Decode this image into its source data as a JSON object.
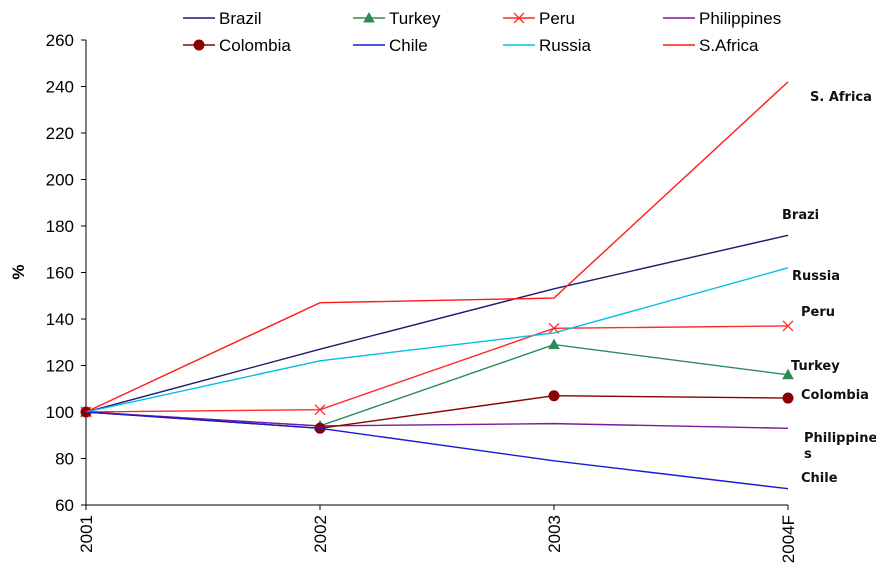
{
  "chart_data": {
    "type": "line",
    "ylabel": "%",
    "xlabel": "",
    "ylim": [
      60,
      260
    ],
    "yticks": [
      "60",
      "80",
      "100",
      "120",
      "140",
      "160",
      "180",
      "200",
      "220",
      "240",
      "260"
    ],
    "categories": [
      "2001",
      "2002",
      "2003",
      "2004F"
    ],
    "legend_position": "top",
    "series": [
      {
        "name": "Brazil",
        "color": "#1f1a6e",
        "marker": "none",
        "values": [
          100,
          127,
          153,
          176
        ]
      },
      {
        "name": "Turkey",
        "color": "#2e8b57",
        "marker": "triangle",
        "values": [
          100,
          94,
          129,
          116
        ]
      },
      {
        "name": "Peru",
        "color": "#ff2a2a",
        "marker": "x",
        "values": [
          100,
          101,
          136,
          137
        ]
      },
      {
        "name": "Philippines",
        "color": "#7a1a9e",
        "marker": "none",
        "values": [
          100,
          94,
          95,
          93
        ]
      },
      {
        "name": "Colombia",
        "color": "#8b0000",
        "marker": "circle",
        "values": [
          100,
          93,
          107,
          106
        ]
      },
      {
        "name": "Chile",
        "color": "#1a1ad6",
        "marker": "none",
        "values": [
          100,
          93,
          79,
          67
        ]
      },
      {
        "name": "Russia",
        "color": "#00c0e0",
        "marker": "none",
        "values": [
          100,
          122,
          134,
          162
        ]
      },
      {
        "name": "S.Africa",
        "color": "#ff1a1a",
        "marker": "none",
        "values": [
          100,
          147,
          149,
          242
        ]
      }
    ],
    "annotations": [
      {
        "text": "S. Africa",
        "series": "S.Africa"
      },
      {
        "text": "Brazi",
        "series": "Brazil"
      },
      {
        "text": "Russia",
        "series": "Russia"
      },
      {
        "text": "Peru",
        "series": "Peru"
      },
      {
        "text": "Turkey",
        "series": "Turkey"
      },
      {
        "text": "Colombia",
        "series": "Colombia"
      },
      {
        "text": "Philippine",
        "series": "Philippines"
      },
      {
        "text": "s",
        "series": "Philippines"
      },
      {
        "text": "Chile",
        "series": "Chile"
      }
    ]
  }
}
